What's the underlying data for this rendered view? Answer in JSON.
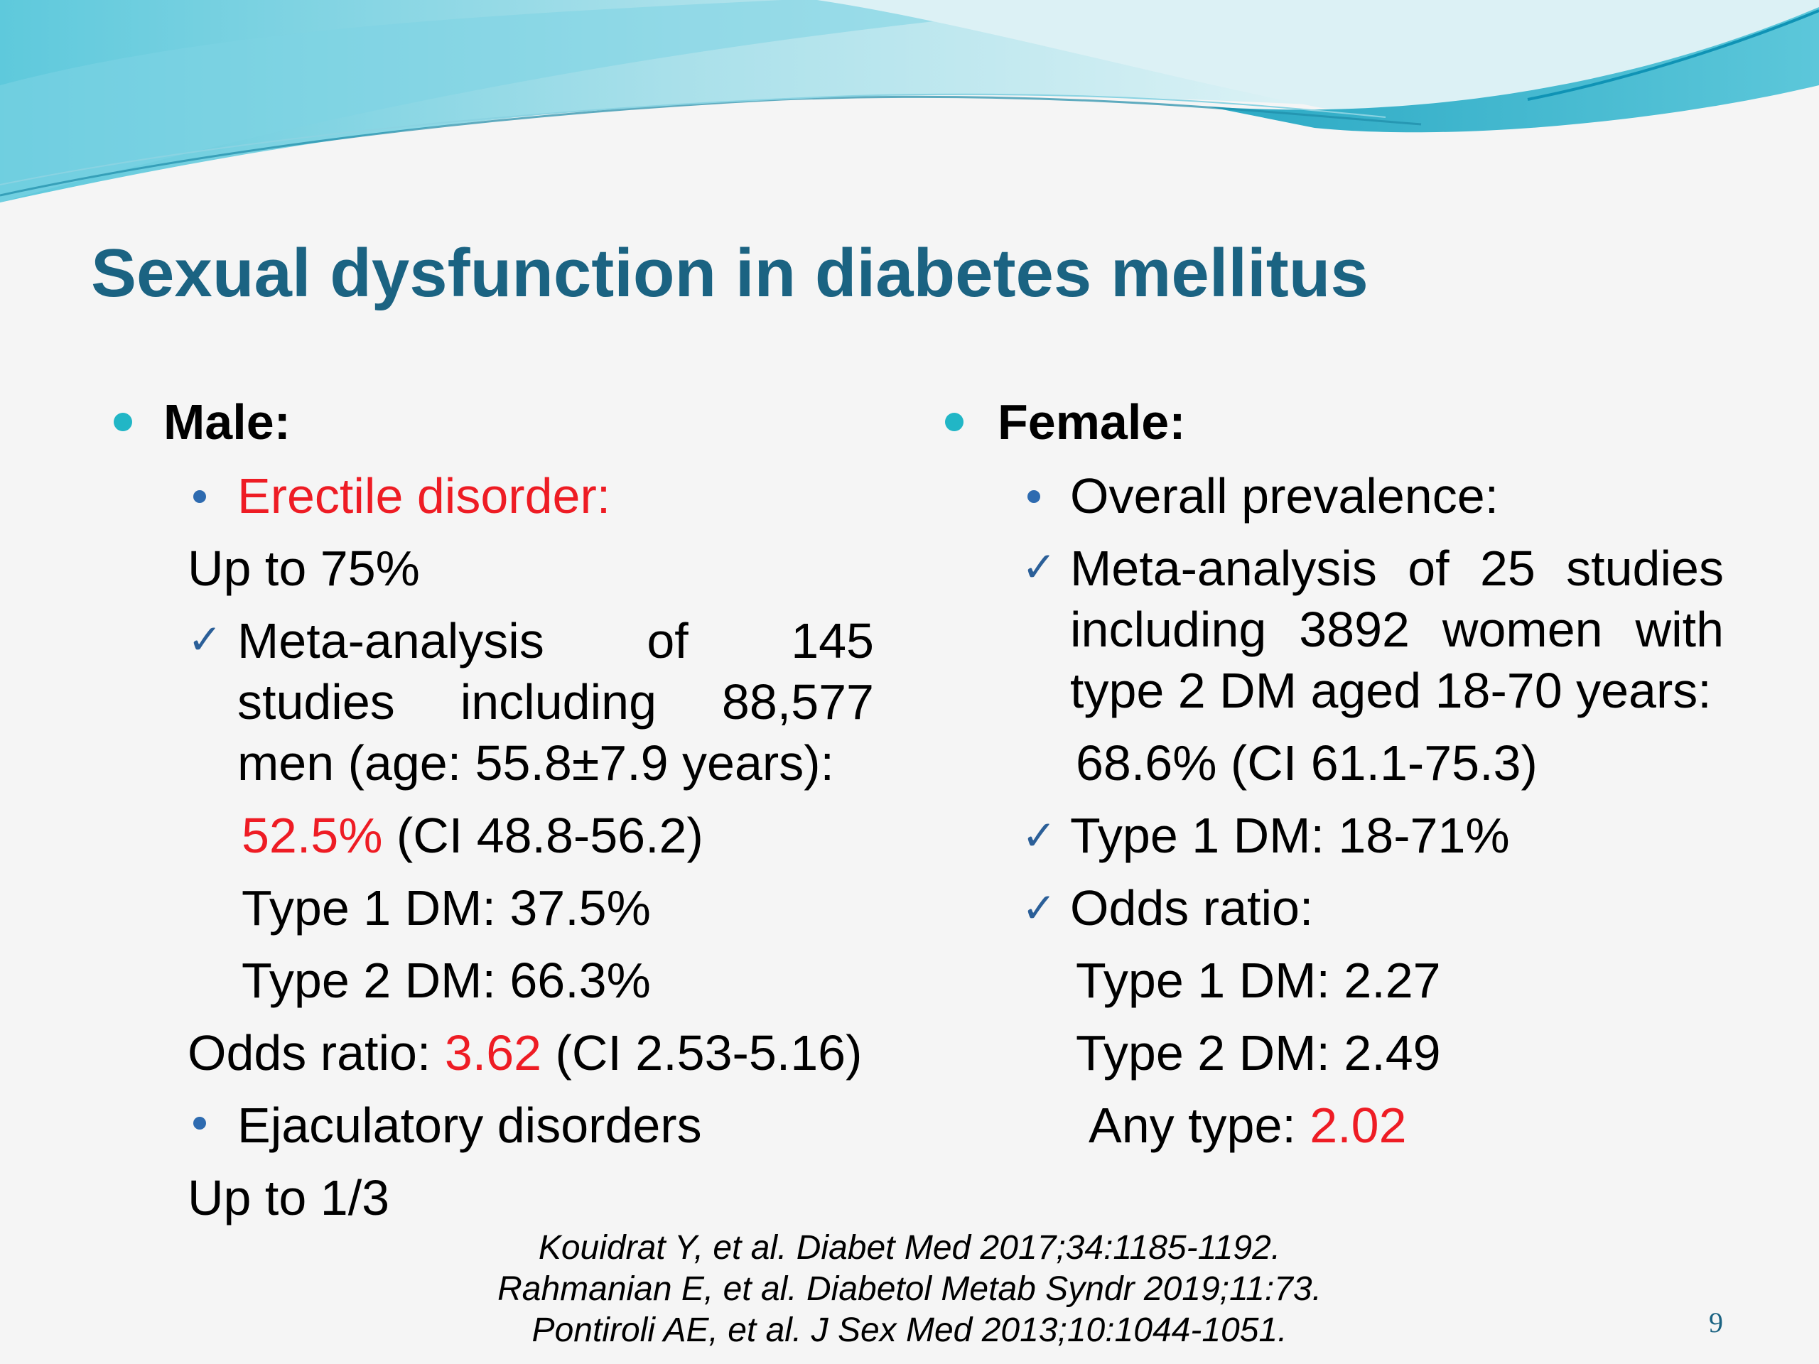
{
  "title": "Sexual dysfunction in diabetes mellitus",
  "colors": {
    "title": "#1b6382",
    "highlight": "#ee1c24",
    "level1_bullet": "#21b6c6",
    "level2_bullet": "#2e6bb0",
    "check": "#2b5f98"
  },
  "male": {
    "heading": "Male:",
    "erectile_label": "Erectile disorder:",
    "erectile_prevalence": "Up to 75%",
    "meta_line1_words": [
      "Meta-analysis",
      "of",
      "145"
    ],
    "meta_line2_words": [
      "studies",
      "including",
      "88,577"
    ],
    "meta_line3": "men (age: 55.8±7.9 years):",
    "prevalence_value": "52.5%",
    "prevalence_ci": " (CI 48.8-56.2)",
    "type1": "Type 1 DM: 37.5%",
    "type2": "Type 2 DM: 66.3%",
    "odds_prefix": "Odds ratio: ",
    "odds_value": "3.62",
    "odds_ci": " (CI 2.53-5.16)",
    "ejaculatory_label": "Ejaculatory disorders",
    "ejaculatory_prevalence": "Up to 1/3"
  },
  "female": {
    "heading": "Female:",
    "overall_label": "Overall prevalence:",
    "meta_line1_words": [
      "Meta-analysis",
      "of",
      "25",
      "studies"
    ],
    "meta_line2_words": [
      "including",
      "3892",
      "women",
      "with"
    ],
    "meta_line3": "type 2 DM aged 18-70 years:",
    "prevalence": "68.6% (CI 61.1-75.3)",
    "type1_range": "Type 1 DM: 18-71%",
    "odds_label": "Odds ratio:",
    "odds_type1": "Type 1 DM: 2.27",
    "odds_type2": "Type 2 DM: 2.49",
    "any_type_prefix": "Any type: ",
    "any_type_value": "2.02"
  },
  "references": [
    "Kouidrat  Y, et al. Diabet Med 2017;34:1185-1192.",
    "Rahmanian E, et al. Diabetol Metab Syndr 2019;11:73.",
    "Pontiroli AE, et al. J Sex Med 2013;10:1044-1051."
  ],
  "page_number": "9"
}
